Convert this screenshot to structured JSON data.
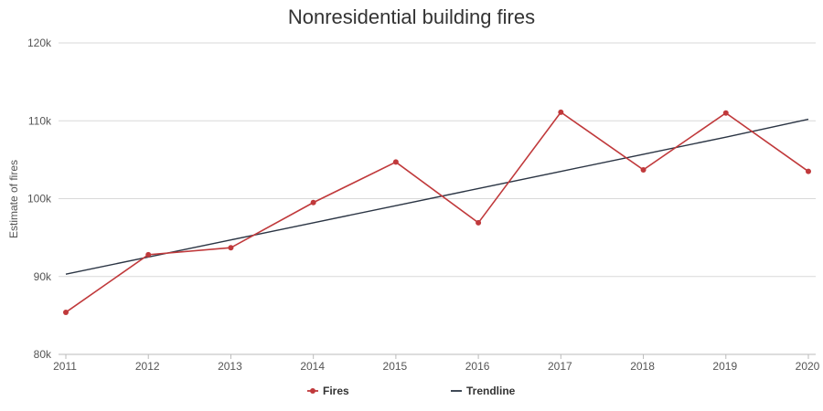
{
  "chart_data": {
    "type": "line",
    "title": "Nonresidential building fires",
    "xlabel": "",
    "ylabel": "Estimate of fires",
    "x": [
      "2011",
      "2012",
      "2013",
      "2014",
      "2015",
      "2016",
      "2017",
      "2018",
      "2019",
      "2020"
    ],
    "ylim": [
      80000,
      120000
    ],
    "yticks": [
      80000,
      90000,
      100000,
      110000,
      120000
    ],
    "ytick_labels": [
      "80k",
      "90k",
      "100k",
      "110k",
      "120k"
    ],
    "grid": true,
    "legend_position": "bottom",
    "series": [
      {
        "name": "Fires",
        "color": "#c0393b",
        "markers": true,
        "values": [
          85400,
          92800,
          93700,
          99500,
          104700,
          96900,
          111100,
          103700,
          111000,
          103500
        ]
      },
      {
        "name": "Trendline",
        "color": "#2b3544",
        "markers": false,
        "values": [
          90300,
          92500,
          94700,
          96900,
          99100,
          101300,
          103500,
          105700,
          107900,
          110200
        ]
      }
    ]
  }
}
